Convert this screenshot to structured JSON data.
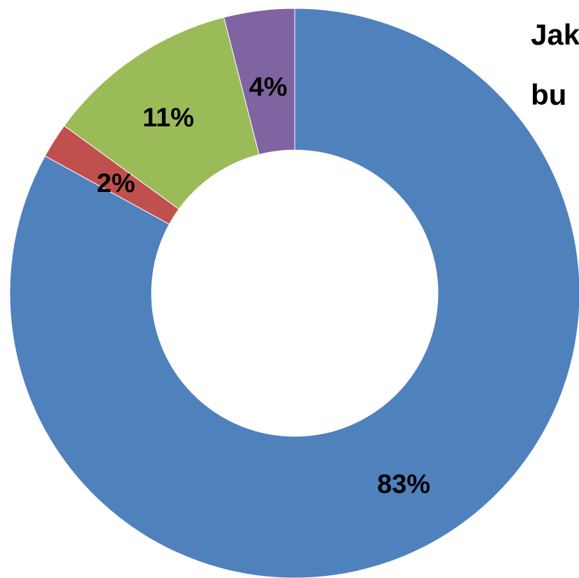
{
  "chart_data": {
    "type": "pie",
    "variant": "donut",
    "title_lines": [
      "Jak",
      "bu"
    ],
    "slices": [
      {
        "value": 83,
        "label": "83%",
        "color": "#4F81BD"
      },
      {
        "value": 2,
        "label": "2%",
        "color": "#C0504D"
      },
      {
        "value": 11,
        "label": "11%",
        "color": "#9BBB59"
      },
      {
        "value": 4,
        "label": "4%",
        "color": "#8064A2"
      }
    ],
    "legend": "none"
  }
}
